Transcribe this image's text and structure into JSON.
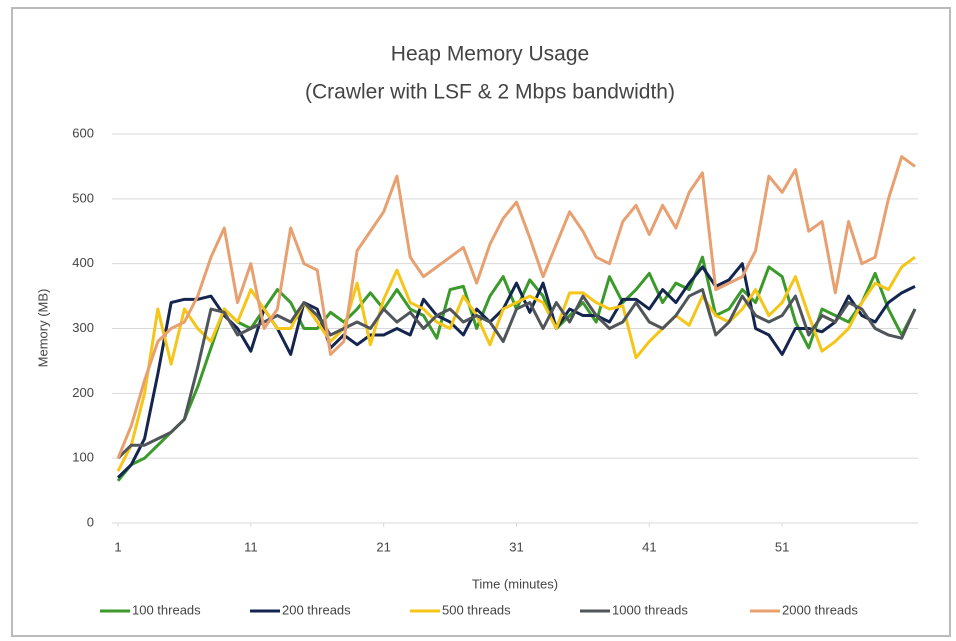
{
  "chart_data": {
    "type": "line",
    "title": "Heap Memory Usage",
    "subtitle": "(Crawler with LSF & 2 Mbps bandwidth)",
    "x_label": "Time (minutes)",
    "y_label": "Memory (MB)",
    "x": [
      1,
      2,
      3,
      4,
      5,
      6,
      7,
      8,
      9,
      10,
      11,
      12,
      13,
      14,
      15,
      16,
      17,
      18,
      19,
      20,
      21,
      22,
      23,
      24,
      25,
      26,
      27,
      28,
      29,
      30,
      31,
      32,
      33,
      34,
      35,
      36,
      37,
      38,
      39,
      40,
      41,
      42,
      43,
      44,
      45,
      46,
      47,
      48,
      49,
      50,
      51,
      52,
      53,
      54,
      55,
      56,
      57,
      58,
      59,
      60,
      61
    ],
    "xlim": [
      1,
      61
    ],
    "xticks": [
      1,
      11,
      21,
      31,
      41,
      51
    ],
    "ylim": [
      0,
      600
    ],
    "yticks": [
      0,
      100,
      200,
      300,
      400,
      500,
      600
    ],
    "grid": true,
    "legend": "bottom",
    "series": [
      {
        "name": "100 threads",
        "color": "#3a9a2a",
        "values": [
          65,
          90,
          100,
          120,
          140,
          160,
          210,
          270,
          330,
          310,
          300,
          330,
          360,
          340,
          300,
          300,
          325,
          310,
          330,
          355,
          330,
          360,
          330,
          320,
          285,
          360,
          365,
          300,
          350,
          380,
          330,
          375,
          350,
          300,
          320,
          340,
          310,
          380,
          340,
          360,
          385,
          340,
          370,
          360,
          410,
          320,
          330,
          360,
          340,
          395,
          380,
          310,
          270,
          330,
          320,
          310,
          340,
          385,
          330,
          290,
          330
        ]
      },
      {
        "name": "200 threads",
        "color": "#14254f",
        "values": [
          70,
          90,
          130,
          230,
          340,
          345,
          345,
          350,
          320,
          300,
          265,
          330,
          300,
          260,
          340,
          330,
          270,
          290,
          275,
          290,
          290,
          300,
          290,
          345,
          320,
          310,
          290,
          330,
          310,
          330,
          370,
          325,
          370,
          300,
          330,
          320,
          320,
          310,
          345,
          345,
          330,
          360,
          340,
          370,
          395,
          365,
          375,
          400,
          300,
          290,
          260,
          300,
          300,
          295,
          310,
          350,
          320,
          310,
          340,
          355,
          365
        ]
      },
      {
        "name": "500 threads",
        "color": "#f5c518",
        "values": [
          80,
          120,
          200,
          330,
          245,
          330,
          300,
          280,
          330,
          310,
          360,
          330,
          300,
          300,
          340,
          310,
          280,
          300,
          370,
          275,
          345,
          390,
          340,
          330,
          310,
          300,
          350,
          320,
          275,
          330,
          340,
          350,
          340,
          300,
          355,
          355,
          340,
          330,
          335,
          255,
          280,
          300,
          320,
          305,
          350,
          320,
          310,
          330,
          360,
          320,
          340,
          380,
          320,
          265,
          280,
          300,
          340,
          370,
          360,
          395,
          410
        ]
      },
      {
        "name": "1000 threads",
        "color": "#505559",
        "values": [
          100,
          120,
          120,
          130,
          140,
          160,
          240,
          330,
          325,
          290,
          300,
          310,
          320,
          310,
          340,
          320,
          290,
          300,
          310,
          300,
          330,
          310,
          325,
          300,
          320,
          330,
          310,
          320,
          310,
          280,
          330,
          340,
          300,
          340,
          310,
          350,
          320,
          300,
          310,
          340,
          310,
          300,
          320,
          350,
          360,
          290,
          310,
          350,
          320,
          310,
          320,
          350,
          290,
          320,
          310,
          340,
          330,
          300,
          290,
          285,
          330
        ]
      },
      {
        "name": "2000 threads",
        "color": "#e8a070",
        "values": [
          100,
          150,
          220,
          280,
          300,
          310,
          350,
          410,
          455,
          340,
          400,
          300,
          330,
          455,
          400,
          390,
          260,
          280,
          420,
          450,
          480,
          535,
          410,
          380,
          395,
          410,
          425,
          370,
          430,
          470,
          495,
          440,
          380,
          430,
          480,
          450,
          410,
          400,
          465,
          490,
          445,
          490,
          455,
          510,
          540,
          360,
          370,
          380,
          420,
          535,
          510,
          545,
          450,
          465,
          355,
          465,
          400,
          410,
          500,
          565,
          550
        ]
      }
    ]
  }
}
